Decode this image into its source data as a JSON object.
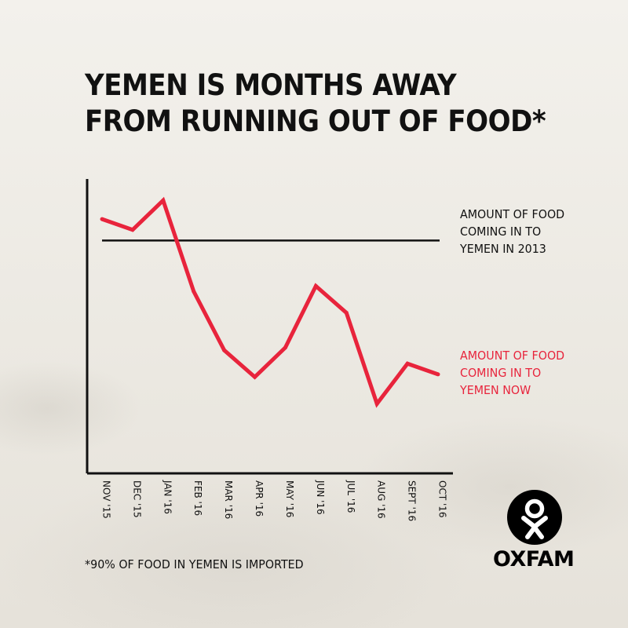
{
  "title": {
    "line1": "YEMEN IS MONTHS AWAY",
    "line2": "FROM RUNNING OUT OF FOOD*"
  },
  "annotations": {
    "baseline": [
      "AMOUNT OF FOOD",
      "COMING IN TO",
      "YEMEN IN 2013"
    ],
    "current": [
      "AMOUNT OF FOOD",
      "COMING IN TO",
      "YEMEN NOW"
    ]
  },
  "footnote": "*90% OF FOOD IN YEMEN IS IMPORTED",
  "logo": {
    "text": "OXFAM",
    "icon": "oxfam-figure-icon"
  },
  "colors": {
    "series": "#e8243c",
    "baseline": "#111111",
    "text": "#111111"
  },
  "chart_data": {
    "type": "line",
    "x": [
      "NOV '15",
      "DEC '15",
      "JAN '16",
      "FEB '16",
      "MAR '16",
      "APR '16",
      "MAY '16",
      "JUN '16",
      "JUL '16",
      "AUG '16",
      "SEPT '16",
      "OCT '16"
    ],
    "series": [
      {
        "name": "AMOUNT OF FOOD COMING IN TO YEMEN NOW",
        "color": "#e8243c",
        "values": [
          95,
          91,
          102,
          68,
          46,
          36,
          47,
          70,
          60,
          26,
          41,
          37
        ]
      }
    ],
    "reference_line": {
      "name": "AMOUNT OF FOOD COMING IN TO YEMEN IN 2013",
      "value": 87
    },
    "ylim": [
      0,
      110
    ],
    "xlabel": "",
    "ylabel": "",
    "grid": false
  }
}
